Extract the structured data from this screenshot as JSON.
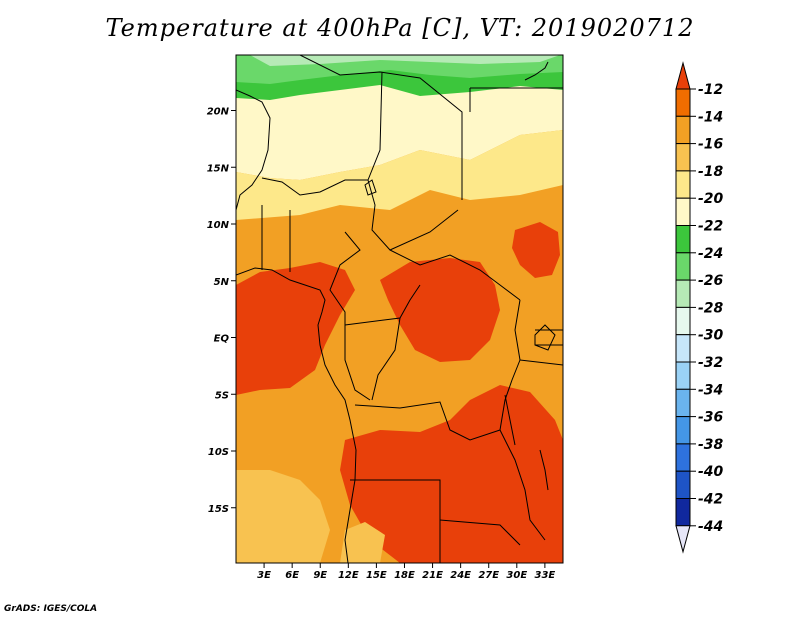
{
  "title": "Temperature at 400hPa [C], VT: 2019020712",
  "credit": "GrADS: IGES/COLA",
  "chart_data": {
    "type": "heatmap",
    "variable": "Temperature at 400hPa",
    "units": "C",
    "valid_time": "2019020712",
    "lon_range": [
      0,
      35
    ],
    "lat_range": [
      -20,
      24
    ],
    "x_ticks": [
      "3E",
      "6E",
      "9E",
      "12E",
      "15E",
      "18E",
      "21E",
      "24E",
      "27E",
      "30E",
      "33E"
    ],
    "y_ticks": [
      "20N",
      "15N",
      "10N",
      "5N",
      "EQ",
      "5S",
      "10S",
      "15S"
    ],
    "colorbar": {
      "levels": [
        "-12",
        "-14",
        "-16",
        "-18",
        "-20",
        "-22",
        "-24",
        "-26",
        "-28",
        "-30",
        "-32",
        "-34",
        "-36",
        "-38",
        "-40",
        "-42",
        "-44"
      ],
      "colors": [
        "#e8400a",
        "#f06d00",
        "#f2a024",
        "#f8c250",
        "#fde88a",
        "#fff8c8",
        "#3cc63c",
        "#6ad86a",
        "#b6eab6",
        "#e6f8ee",
        "#c6e6fa",
        "#9ad2f6",
        "#6ab4ee",
        "#4496e6",
        "#2e72de",
        "#1e54c6",
        "#10289e",
        "#0c0a60"
      ]
    },
    "zones": [
      {
        "name": "northern green band",
        "range_c": [
          -24,
          -22
        ]
      },
      {
        "name": "northern pale yellow band",
        "range_c": [
          -20,
          -18
        ]
      },
      {
        "name": "central light orange belt",
        "range_c": [
          -16,
          -14
        ]
      },
      {
        "name": "equatorial and southern dark orange cores",
        "range_c": [
          -14,
          -12
        ]
      }
    ]
  }
}
